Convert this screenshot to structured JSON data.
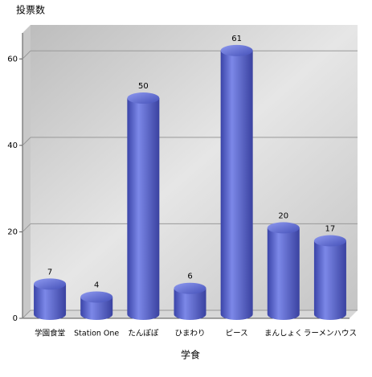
{
  "chart_data": {
    "type": "bar",
    "title": "投票数",
    "x_label": "学食",
    "categories": [
      "学園食堂",
      "Station One",
      "たんぽぽ",
      "ひまわり",
      "ピース",
      "まんしょく",
      "ラーメンハウス"
    ],
    "values": [
      7,
      4,
      50,
      6,
      61,
      20,
      17
    ],
    "color": "#5560c8",
    "ylim": [
      0,
      66
    ],
    "yticks": [
      0,
      20,
      40,
      60
    ],
    "grid": true
  }
}
